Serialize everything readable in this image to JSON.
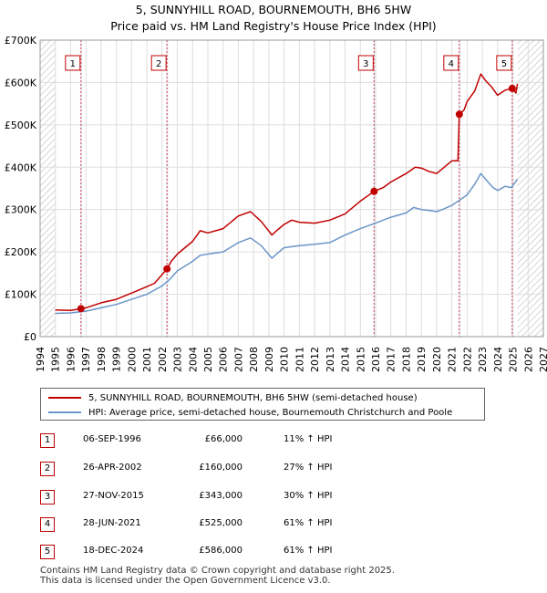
{
  "title": {
    "line1": "5, SUNNYHILL ROAD, BOURNEMOUTH, BH6 5HW",
    "line2": "Price paid vs. HM Land Registry's House Price Index (HPI)"
  },
  "colors": {
    "property": "#c00000",
    "hpi": "#6b96c8",
    "grid": "#dddddd",
    "shade": "#e8eef8",
    "hatch": "#bbbbbb",
    "marker_line": "#dd4444"
  },
  "chart_data": {
    "type": "line",
    "title": "Price paid vs. HM Land Registry's House Price Index (HPI)",
    "xlabel": "",
    "ylabel": "",
    "xlim": [
      1994,
      2027
    ],
    "ylim": [
      0,
      700000
    ],
    "y_ticks": [
      0,
      100000,
      200000,
      300000,
      400000,
      500000,
      600000,
      700000
    ],
    "y_tick_labels": [
      "£0",
      "£100K",
      "£200K",
      "£300K",
      "£400K",
      "£500K",
      "£600K",
      "£700K"
    ],
    "x_ticks": [
      1994,
      1995,
      1996,
      1997,
      1998,
      1999,
      2000,
      2001,
      2002,
      2003,
      2004,
      2005,
      2006,
      2007,
      2008,
      2009,
      2010,
      2011,
      2012,
      2013,
      2014,
      2015,
      2016,
      2017,
      2018,
      2019,
      2020,
      2021,
      2022,
      2023,
      2024,
      2025,
      2026,
      2027
    ],
    "x_tick_labels": [
      "1994",
      "1995",
      "1996",
      "1997",
      "1998",
      "1999",
      "2000",
      "2001",
      "2002",
      "2003",
      "2004",
      "2005",
      "2006",
      "2007",
      "2008",
      "2009",
      "2010",
      "2011",
      "2012",
      "2013",
      "2014",
      "2015",
      "2016",
      "2017",
      "2018",
      "2019",
      "2020",
      "2021",
      "2022",
      "2023",
      "2024",
      "2025",
      "2026",
      "2027"
    ],
    "data_start": 1995.0,
    "data_end": 2025.3,
    "series": [
      {
        "name": "5, SUNNYHILL ROAD, BOURNEMOUTH, BH6 5HW (semi-detached house)",
        "color": "#c00000",
        "x": [
          1995.0,
          1996.0,
          1996.68,
          1997.0,
          1998.0,
          1999.0,
          2000.0,
          2001.0,
          2001.5,
          2002.32,
          2002.6,
          2003.0,
          2004.0,
          2004.5,
          2005.0,
          2006.0,
          2007.0,
          2007.8,
          2008.5,
          2009.2,
          2009.5,
          2010.0,
          2010.5,
          2011.0,
          2012.0,
          2013.0,
          2014.0,
          2014.5,
          2015.0,
          2015.9,
          2016.5,
          2017.0,
          2018.0,
          2018.6,
          2019.0,
          2019.5,
          2020.0,
          2020.5,
          2021.0,
          2021.4,
          2021.49,
          2021.8,
          2022.0,
          2022.5,
          2022.9,
          2023.2,
          2023.6,
          2024.0,
          2024.5,
          2024.96,
          2025.2,
          2025.3
        ],
        "y": [
          63000,
          62000,
          66000,
          68000,
          80000,
          88000,
          103000,
          118000,
          126000,
          160000,
          178000,
          195000,
          225000,
          250000,
          245000,
          255000,
          285000,
          295000,
          272000,
          240000,
          250000,
          265000,
          275000,
          270000,
          268000,
          275000,
          290000,
          305000,
          320000,
          343000,
          352000,
          365000,
          385000,
          400000,
          398000,
          390000,
          385000,
          400000,
          415000,
          415000,
          525000,
          535000,
          555000,
          580000,
          620000,
          605000,
          590000,
          570000,
          582000,
          586000,
          575000,
          597000
        ]
      },
      {
        "name": "HPI: Average price, semi-detached house, Bournemouth Christchurch and Poole",
        "color": "#6b96c8",
        "x": [
          1995.0,
          1996.0,
          1997.0,
          1998.0,
          1999.0,
          2000.0,
          2001.0,
          2002.0,
          2002.5,
          2003.0,
          2004.0,
          2004.5,
          2005.0,
          2006.0,
          2007.0,
          2007.8,
          2008.5,
          2009.2,
          2009.6,
          2010.0,
          2011.0,
          2012.0,
          2013.0,
          2014.0,
          2015.0,
          2016.0,
          2017.0,
          2018.0,
          2018.5,
          2019.0,
          2019.5,
          2020.0,
          2020.5,
          2021.0,
          2021.5,
          2022.0,
          2022.5,
          2022.9,
          2023.3,
          2023.7,
          2024.0,
          2024.5,
          2024.9,
          2025.3
        ],
        "y": [
          55000,
          56000,
          60000,
          68000,
          76000,
          88000,
          100000,
          120000,
          135000,
          155000,
          178000,
          192000,
          195000,
          200000,
          222000,
          233000,
          215000,
          185000,
          198000,
          210000,
          215000,
          218000,
          222000,
          240000,
          255000,
          268000,
          282000,
          292000,
          305000,
          300000,
          298000,
          295000,
          302000,
          310000,
          322000,
          335000,
          360000,
          385000,
          368000,
          352000,
          345000,
          355000,
          352000,
          372000
        ]
      }
    ],
    "sales": [
      {
        "label": "1",
        "x": 1996.68,
        "y": 66000
      },
      {
        "label": "2",
        "x": 2002.32,
        "y": 160000
      },
      {
        "label": "3",
        "x": 2015.9,
        "y": 343000
      },
      {
        "label": "4",
        "x": 2021.49,
        "y": 525000
      },
      {
        "label": "5",
        "x": 2024.96,
        "y": 586000
      }
    ]
  },
  "legend": {
    "property": "5, SUNNYHILL ROAD, BOURNEMOUTH, BH6 5HW (semi-detached house)",
    "hpi": "HPI: Average price, semi-detached house, Bournemouth Christchurch and Poole"
  },
  "sales_table": [
    {
      "num": "1",
      "date": "06-SEP-1996",
      "price": "£66,000",
      "hpi": "11% ↑ HPI"
    },
    {
      "num": "2",
      "date": "26-APR-2002",
      "price": "£160,000",
      "hpi": "27% ↑ HPI"
    },
    {
      "num": "3",
      "date": "27-NOV-2015",
      "price": "£343,000",
      "hpi": "30% ↑ HPI"
    },
    {
      "num": "4",
      "date": "28-JUN-2021",
      "price": "£525,000",
      "hpi": "61% ↑ HPI"
    },
    {
      "num": "5",
      "date": "18-DEC-2024",
      "price": "£586,000",
      "hpi": "61% ↑ HPI"
    }
  ],
  "footer": {
    "line1": "Contains HM Land Registry data © Crown copyright and database right 2025.",
    "line2": "This data is licensed under the Open Government Licence v3.0."
  }
}
